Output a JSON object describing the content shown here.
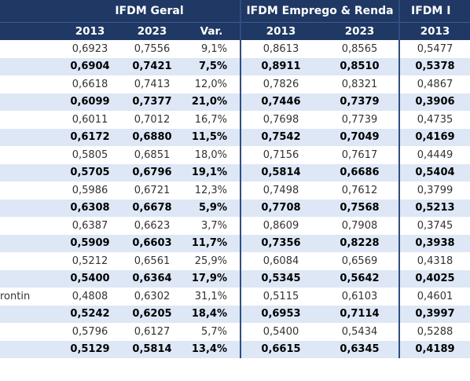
{
  "header": {
    "group_geral": "IFDM Geral",
    "group_emprego": "IFDM Emprego & Renda",
    "group_next": "IFDM I",
    "col_2013": "2013",
    "col_2023": "2023",
    "col_var": "Var."
  },
  "rows": [
    {
      "name": "",
      "geral_2013": "0,6923",
      "geral_2023": "0,7556",
      "var": "9,1%",
      "emp_2013": "0,8613",
      "emp_2023": "0,8565",
      "next_2013": "0,5477"
    },
    {
      "name": "",
      "geral_2013": "0,6904",
      "geral_2023": "0,7421",
      "var": "7,5%",
      "emp_2013": "0,8911",
      "emp_2023": "0,8510",
      "next_2013": "0,5378"
    },
    {
      "name": "",
      "geral_2013": "0,6618",
      "geral_2023": "0,7413",
      "var": "12,0%",
      "emp_2013": "0,7826",
      "emp_2023": "0,8321",
      "next_2013": "0,4867"
    },
    {
      "name": "",
      "geral_2013": "0,6099",
      "geral_2023": "0,7377",
      "var": "21,0%",
      "emp_2013": "0,7446",
      "emp_2023": "0,7379",
      "next_2013": "0,3906"
    },
    {
      "name": "",
      "geral_2013": "0,6011",
      "geral_2023": "0,7012",
      "var": "16,7%",
      "emp_2013": "0,7698",
      "emp_2023": "0,7739",
      "next_2013": "0,4735"
    },
    {
      "name": "",
      "geral_2013": "0,6172",
      "geral_2023": "0,6880",
      "var": "11,5%",
      "emp_2013": "0,7542",
      "emp_2023": "0,7049",
      "next_2013": "0,4169"
    },
    {
      "name": "",
      "geral_2013": "0,5805",
      "geral_2023": "0,6851",
      "var": "18,0%",
      "emp_2013": "0,7156",
      "emp_2023": "0,7617",
      "next_2013": "0,4449"
    },
    {
      "name": "",
      "geral_2013": "0,5705",
      "geral_2023": "0,6796",
      "var": "19,1%",
      "emp_2013": "0,5814",
      "emp_2023": "0,6686",
      "next_2013": "0,5404"
    },
    {
      "name": "",
      "geral_2013": "0,5986",
      "geral_2023": "0,6721",
      "var": "12,3%",
      "emp_2013": "0,7498",
      "emp_2023": "0,7612",
      "next_2013": "0,3799"
    },
    {
      "name": "",
      "geral_2013": "0,6308",
      "geral_2023": "0,6678",
      "var": "5,9%",
      "emp_2013": "0,7708",
      "emp_2023": "0,7568",
      "next_2013": "0,5213"
    },
    {
      "name": "",
      "geral_2013": "0,6387",
      "geral_2023": "0,6623",
      "var": "3,7%",
      "emp_2013": "0,8609",
      "emp_2023": "0,7908",
      "next_2013": "0,3745"
    },
    {
      "name": "",
      "geral_2013": "0,5909",
      "geral_2023": "0,6603",
      "var": "11,7%",
      "emp_2013": "0,7356",
      "emp_2023": "0,8228",
      "next_2013": "0,3938"
    },
    {
      "name": "",
      "geral_2013": "0,5212",
      "geral_2023": "0,6561",
      "var": "25,9%",
      "emp_2013": "0,6084",
      "emp_2023": "0,6569",
      "next_2013": "0,4318"
    },
    {
      "name": "",
      "geral_2013": "0,5400",
      "geral_2023": "0,6364",
      "var": "17,9%",
      "emp_2013": "0,5345",
      "emp_2023": "0,5642",
      "next_2013": "0,4025"
    },
    {
      "name": "rontin",
      "geral_2013": "0,4808",
      "geral_2023": "0,6302",
      "var": "31,1%",
      "emp_2013": "0,5115",
      "emp_2023": "0,6103",
      "next_2013": "0,4601"
    },
    {
      "name": "",
      "geral_2013": "0,5242",
      "geral_2023": "0,6205",
      "var": "18,4%",
      "emp_2013": "0,6953",
      "emp_2023": "0,7114",
      "next_2013": "0,3997"
    },
    {
      "name": "",
      "geral_2013": "0,5796",
      "geral_2023": "0,6127",
      "var": "5,7%",
      "emp_2013": "0,5400",
      "emp_2023": "0,5434",
      "next_2013": "0,5288"
    },
    {
      "name": "",
      "geral_2013": "0,5129",
      "geral_2023": "0,5814",
      "var": "13,4%",
      "emp_2013": "0,6615",
      "emp_2023": "0,6345",
      "next_2013": "0,4189"
    }
  ],
  "colors": {
    "header_bg": "#1f3864",
    "header_text": "#ffffff",
    "alt_row_bg": "#dde7f6",
    "separator": "#2f4e82"
  }
}
